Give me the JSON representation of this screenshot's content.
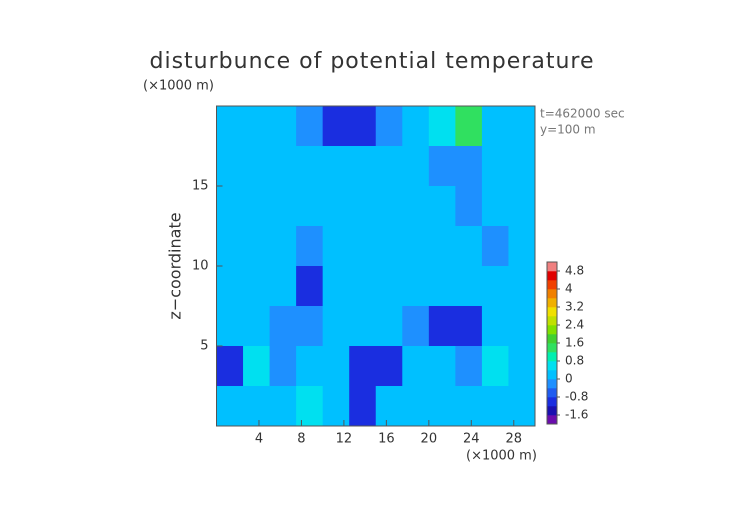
{
  "chart_data": {
    "type": "heatmap",
    "title": "disturbunce of potential temperature",
    "y_unit": "(×1000 m)",
    "x_unit": "(×1000 m)",
    "ylabel": "z−coordinate",
    "annotations": [
      "t=462000 sec",
      "y=100 m"
    ],
    "xlim": [
      0,
      30
    ],
    "ylim": [
      0,
      20
    ],
    "xticks": [
      4,
      8,
      12,
      16,
      20,
      24,
      28
    ],
    "yticks": [
      5,
      10,
      15
    ],
    "values": [
      [
        0.2,
        0.2,
        0,
        -0.4,
        -0.8,
        -1.2,
        -0.4,
        0.4,
        0.8,
        1.2,
        0.4,
        0.2
      ],
      [
        0.2,
        0.2,
        0.2,
        0.2,
        0,
        0.2,
        0.2,
        0.4,
        -0.2,
        -0.4,
        0.4,
        0.2
      ],
      [
        0.2,
        0.4,
        0.2,
        0,
        0.2,
        0.2,
        0.2,
        0.2,
        0.4,
        -0.2,
        0.2,
        0.2
      ],
      [
        0.2,
        0.4,
        0.2,
        -0.4,
        0.2,
        0.2,
        0.2,
        0.2,
        0.2,
        0.2,
        -0.2,
        0.2
      ],
      [
        0.2,
        0.2,
        0.2,
        -0.8,
        0.2,
        0.2,
        0,
        0.2,
        0.2,
        0.2,
        0.2,
        0
      ],
      [
        0.4,
        0.2,
        -0.4,
        -0.4,
        0.2,
        0.2,
        0.2,
        -0.4,
        -0.8,
        -0.8,
        0,
        0.4
      ],
      [
        -1.2,
        0.8,
        -0.4,
        0.2,
        0.4,
        -0.8,
        -0.8,
        0.2,
        0.2,
        -0.4,
        0.8,
        0.2
      ],
      [
        0,
        0.2,
        0.4,
        0.8,
        0.2,
        -0.8,
        0.4,
        0.2,
        0.2,
        0.4,
        0.2,
        0.2
      ]
    ],
    "colorbar": {
      "lim": [
        -2,
        5.2
      ],
      "ticks": [
        -1.6,
        -0.8,
        0,
        0.8,
        1.6,
        2.4,
        3.2,
        4,
        4.8
      ],
      "colors": [
        "#6a0dad",
        "#1a10b0",
        "#1a2ee0",
        "#1f5cf0",
        "#1e90ff",
        "#00c0ff",
        "#00e0f0",
        "#00f0b0",
        "#30e060",
        "#40d030",
        "#80e000",
        "#c0e000",
        "#f0e000",
        "#f0b000",
        "#f08000",
        "#f04000",
        "#e00000",
        "#f08080"
      ]
    }
  }
}
